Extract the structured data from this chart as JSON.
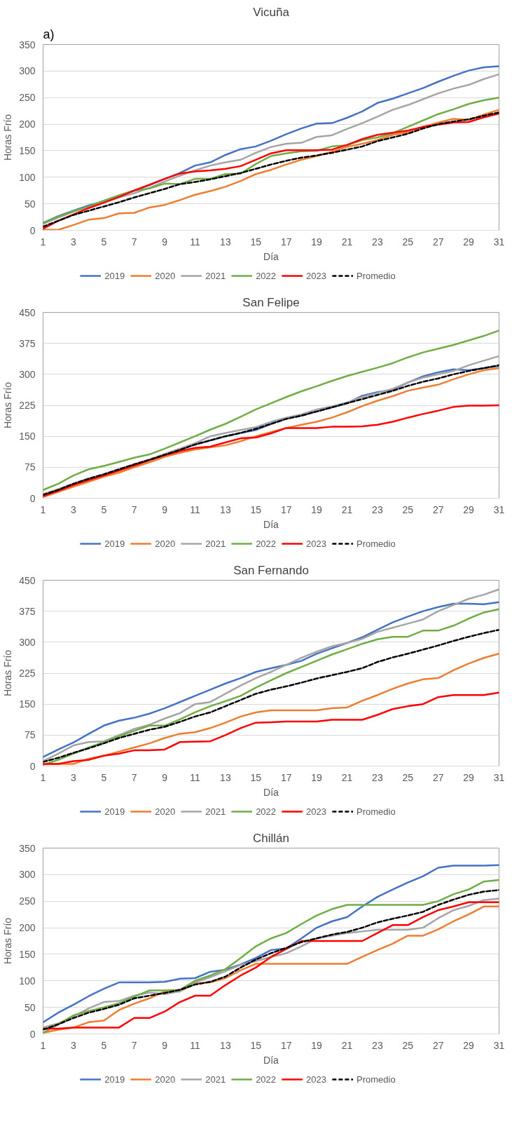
{
  "chart_data": [
    {
      "type": "line",
      "title": "Vicuña",
      "annotations": [
        "a)"
      ],
      "xlabel": "Día",
      "ylabel": "Horas Frío",
      "x": [
        1,
        2,
        3,
        4,
        5,
        6,
        7,
        8,
        9,
        10,
        11,
        12,
        13,
        14,
        15,
        16,
        17,
        18,
        19,
        20,
        21,
        22,
        23,
        24,
        25,
        26,
        27,
        28,
        29,
        30,
        31
      ],
      "xlim": [
        1,
        31
      ],
      "xticks": [
        1,
        3,
        5,
        7,
        9,
        11,
        13,
        15,
        17,
        19,
        21,
        23,
        25,
        27,
        29,
        31
      ],
      "ylim": [
        0,
        350
      ],
      "yticks": [
        0,
        50,
        100,
        150,
        200,
        250,
        300,
        350
      ],
      "grid": "y",
      "legend": "bottom",
      "series": [
        {
          "name": "2019",
          "color": "#4472c4",
          "values": [
            14,
            27,
            37,
            47,
            55,
            65,
            75,
            85,
            97,
            108,
            122,
            128,
            142,
            153,
            158,
            169,
            181,
            192,
            201,
            202,
            212,
            224,
            240,
            248,
            258,
            268,
            280,
            291,
            301,
            307,
            309
          ]
        },
        {
          "name": "2020",
          "color": "#ed7d31",
          "values": [
            1,
            1,
            10,
            20,
            23,
            32,
            33,
            43,
            48,
            57,
            67,
            74,
            82,
            93,
            106,
            114,
            124,
            133,
            140,
            148,
            157,
            163,
            170,
            180,
            185,
            195,
            203,
            210,
            208,
            218,
            227
          ]
        },
        {
          "name": "2021",
          "color": "#a5a5a5",
          "values": [
            12,
            24,
            35,
            45,
            53,
            62,
            70,
            80,
            92,
            103,
            113,
            122,
            128,
            133,
            146,
            157,
            163,
            165,
            176,
            179,
            191,
            202,
            214,
            227,
            236,
            247,
            258,
            267,
            274,
            285,
            294
          ]
        },
        {
          "name": "2022",
          "color": "#70ad47",
          "values": [
            14,
            26,
            36,
            45,
            56,
            66,
            75,
            79,
            88,
            87,
            97,
            97,
            106,
            107,
            125,
            140,
            145,
            149,
            150,
            158,
            160,
            170,
            175,
            183,
            195,
            207,
            219,
            228,
            238,
            245,
            250
          ]
        },
        {
          "name": "2023",
          "color": "#ff0000",
          "values": [
            3,
            18,
            30,
            42,
            52,
            63,
            75,
            86,
            97,
            107,
            111,
            113,
            116,
            121,
            133,
            145,
            151,
            151,
            151,
            152,
            161,
            172,
            180,
            184,
            188,
            195,
            199,
            203,
            204,
            213,
            220
          ]
        },
        {
          "name": "Promedio",
          "color": "#000000",
          "line_style": "dashed",
          "values": [
            7,
            18,
            29,
            37,
            45,
            53,
            62,
            70,
            78,
            87,
            91,
            96,
            102,
            108,
            116,
            124,
            131,
            137,
            141,
            146,
            152,
            158,
            168,
            175,
            182,
            192,
            200,
            205,
            209,
            216,
            222
          ]
        }
      ]
    },
    {
      "type": "line",
      "title": "San Felipe",
      "xlabel": "Día",
      "ylabel": "Horas Frío",
      "x": [
        1,
        2,
        3,
        4,
        5,
        6,
        7,
        8,
        9,
        10,
        11,
        12,
        13,
        14,
        15,
        16,
        17,
        18,
        19,
        20,
        21,
        22,
        23,
        24,
        25,
        26,
        27,
        28,
        29,
        30,
        31
      ],
      "xlim": [
        1,
        31
      ],
      "xticks": [
        1,
        3,
        5,
        7,
        9,
        11,
        13,
        15,
        17,
        19,
        21,
        23,
        25,
        27,
        29,
        31
      ],
      "ylim": [
        0,
        450
      ],
      "yticks": [
        0,
        75,
        150,
        225,
        300,
        375,
        450
      ],
      "grid": "y",
      "legend": "bottom",
      "series": [
        {
          "name": "2019",
          "color": "#4472c4",
          "values": [
            null,
            null,
            null,
            null,
            null,
            null,
            null,
            null,
            105,
            117,
            130,
            140,
            150,
            158,
            165,
            180,
            193,
            200,
            210,
            220,
            230,
            248,
            257,
            262,
            280,
            295,
            305,
            312,
            310,
            315,
            320
          ]
        },
        {
          "name": "2020",
          "color": "#ed7d31",
          "values": [
            3,
            15,
            28,
            40,
            52,
            62,
            75,
            87,
            100,
            110,
            118,
            123,
            128,
            138,
            150,
            160,
            170,
            178,
            185,
            195,
            208,
            223,
            236,
            247,
            260,
            268,
            275,
            288,
            300,
            310,
            315
          ]
        },
        {
          "name": "2021",
          "color": "#a5a5a5",
          "values": [
            10,
            22,
            35,
            48,
            58,
            70,
            82,
            94,
            107,
            120,
            133,
            150,
            158,
            165,
            172,
            185,
            195,
            203,
            215,
            222,
            232,
            245,
            255,
            265,
            280,
            292,
            300,
            308,
            322,
            333,
            344
          ]
        },
        {
          "name": "2022",
          "color": "#70ad47",
          "values": [
            20,
            35,
            55,
            70,
            78,
            88,
            98,
            106,
            120,
            135,
            150,
            166,
            180,
            197,
            215,
            230,
            245,
            259,
            271,
            284,
            296,
            306,
            316,
            327,
            341,
            353,
            362,
            371,
            382,
            393,
            406
          ]
        },
        {
          "name": "2023",
          "color": "#ff0000",
          "values": [
            5,
            18,
            32,
            44,
            55,
            67,
            79,
            92,
            104,
            114,
            122,
            125,
            135,
            145,
            147,
            157,
            170,
            170,
            170,
            173,
            173,
            174,
            178,
            185,
            195,
            204,
            212,
            221,
            224,
            224,
            225
          ]
        },
        {
          "name": "Promedio",
          "color": "#000000",
          "line_style": "dashed",
          "values": [
            8,
            20,
            35,
            47,
            58,
            70,
            82,
            93,
            105,
            117,
            130,
            140,
            150,
            158,
            168,
            180,
            192,
            200,
            210,
            220,
            230,
            240,
            250,
            260,
            272,
            282,
            290,
            300,
            308,
            315,
            322
          ]
        }
      ]
    },
    {
      "type": "line",
      "title": "San Fernando",
      "xlabel": "Día",
      "ylabel": "Horas Frío",
      "x": [
        1,
        2,
        3,
        4,
        5,
        6,
        7,
        8,
        9,
        10,
        11,
        12,
        13,
        14,
        15,
        16,
        17,
        18,
        19,
        20,
        21,
        22,
        23,
        24,
        25,
        26,
        27,
        28,
        29,
        30,
        31
      ],
      "xlim": [
        1,
        31
      ],
      "xticks": [
        1,
        3,
        5,
        7,
        9,
        11,
        13,
        15,
        17,
        19,
        21,
        23,
        25,
        27,
        29,
        31
      ],
      "ylim": [
        0,
        450
      ],
      "yticks": [
        0,
        75,
        150,
        225,
        300,
        375,
        450
      ],
      "grid": "y",
      "legend": "bottom",
      "series": [
        {
          "name": "2019",
          "color": "#4472c4",
          "values": [
            22,
            40,
            57,
            78,
            98,
            110,
            117,
            127,
            140,
            155,
            170,
            185,
            200,
            213,
            228,
            237,
            245,
            255,
            272,
            285,
            298,
            312,
            330,
            348,
            362,
            375,
            385,
            393,
            393,
            392,
            397
          ]
        },
        {
          "name": "2020",
          "color": "#ed7d31",
          "values": [
            5,
            5,
            5,
            18,
            25,
            35,
            45,
            55,
            68,
            78,
            82,
            92,
            105,
            120,
            130,
            135,
            135,
            135,
            135,
            140,
            142,
            158,
            172,
            187,
            200,
            210,
            213,
            232,
            248,
            262,
            272
          ]
        },
        {
          "name": "2021",
          "color": "#a5a5a5",
          "values": [
            12,
            30,
            50,
            58,
            60,
            75,
            90,
            100,
            115,
            128,
            150,
            155,
            175,
            195,
            213,
            228,
            245,
            262,
            277,
            290,
            298,
            308,
            325,
            335,
            345,
            355,
            375,
            390,
            405,
            415,
            428
          ]
        },
        {
          "name": "2022",
          "color": "#70ad47",
          "values": [
            3,
            15,
            30,
            45,
            58,
            72,
            85,
            98,
            98,
            113,
            130,
            145,
            157,
            170,
            190,
            208,
            225,
            240,
            255,
            270,
            283,
            296,
            307,
            313,
            313,
            328,
            328,
            340,
            357,
            372,
            380
          ]
        },
        {
          "name": "2023",
          "color": "#ff0000",
          "values": [
            5,
            5,
            12,
            15,
            25,
            30,
            38,
            38,
            40,
            58,
            59,
            60,
            75,
            92,
            105,
            106,
            108,
            108,
            108,
            112,
            112,
            112,
            124,
            138,
            145,
            150,
            167,
            172,
            172,
            172,
            178
          ]
        },
        {
          "name": "Promedio",
          "color": "#000000",
          "line_style": "dashed",
          "values": [
            10,
            20,
            32,
            43,
            55,
            68,
            78,
            88,
            95,
            107,
            120,
            130,
            145,
            160,
            175,
            185,
            193,
            202,
            212,
            220,
            228,
            237,
            252,
            263,
            272,
            282,
            292,
            303,
            313,
            322,
            330
          ]
        }
      ]
    },
    {
      "type": "line",
      "title": "Chillán",
      "xlabel": "Día",
      "ylabel": "Horas Frío",
      "x": [
        1,
        2,
        3,
        4,
        5,
        6,
        7,
        8,
        9,
        10,
        11,
        12,
        13,
        14,
        15,
        16,
        17,
        18,
        19,
        20,
        21,
        22,
        23,
        24,
        25,
        26,
        27,
        28,
        29,
        30,
        31
      ],
      "xlim": [
        1,
        31
      ],
      "xticks": [
        1,
        3,
        5,
        7,
        9,
        11,
        13,
        15,
        17,
        19,
        21,
        23,
        25,
        27,
        29,
        31
      ],
      "ylim": [
        0,
        350
      ],
      "yticks": [
        0,
        50,
        100,
        150,
        200,
        250,
        300,
        350
      ],
      "grid": "y",
      "legend": "bottom",
      "series": [
        {
          "name": "2019",
          "color": "#4472c4",
          "values": [
            22,
            40,
            55,
            71,
            85,
            97,
            97,
            97,
            98,
            104,
            105,
            117,
            121,
            131,
            143,
            158,
            161,
            180,
            200,
            212,
            220,
            240,
            258,
            272,
            285,
            297,
            313,
            317,
            317,
            317,
            318
          ]
        },
        {
          "name": "2020",
          "color": "#ed7d31",
          "values": [
            2,
            8,
            12,
            22,
            25,
            45,
            57,
            67,
            80,
            80,
            95,
            97,
            105,
            120,
            132,
            132,
            132,
            132,
            132,
            132,
            132,
            145,
            158,
            170,
            185,
            185,
            197,
            212,
            225,
            240,
            240
          ]
        },
        {
          "name": "2021",
          "color": "#a5a5a5",
          "values": [
            12,
            20,
            33,
            48,
            60,
            62,
            72,
            78,
            75,
            80,
            97,
            107,
            118,
            130,
            137,
            145,
            152,
            165,
            180,
            185,
            190,
            193,
            196,
            196,
            196,
            200,
            218,
            233,
            241,
            252,
            255
          ]
        },
        {
          "name": "2022",
          "color": "#70ad47",
          "values": [
            2,
            18,
            35,
            43,
            50,
            58,
            70,
            82,
            82,
            83,
            100,
            110,
            122,
            143,
            165,
            180,
            190,
            207,
            223,
            235,
            243,
            243,
            243,
            243,
            243,
            243,
            250,
            263,
            272,
            287,
            290
          ]
        },
        {
          "name": "2023",
          "color": "#ff0000",
          "values": [
            10,
            10,
            12,
            12,
            12,
            12,
            30,
            30,
            42,
            60,
            72,
            72,
            92,
            110,
            125,
            145,
            160,
            175,
            175,
            175,
            175,
            175,
            190,
            205,
            205,
            220,
            233,
            240,
            248,
            248,
            248
          ]
        },
        {
          "name": "Promedio",
          "color": "#000000",
          "line_style": "dashed",
          "values": [
            8,
            18,
            30,
            40,
            47,
            55,
            67,
            72,
            77,
            83,
            93,
            98,
            108,
            125,
            140,
            152,
            162,
            173,
            180,
            187,
            192,
            200,
            210,
            217,
            223,
            230,
            243,
            253,
            262,
            268,
            271
          ]
        }
      ]
    }
  ]
}
